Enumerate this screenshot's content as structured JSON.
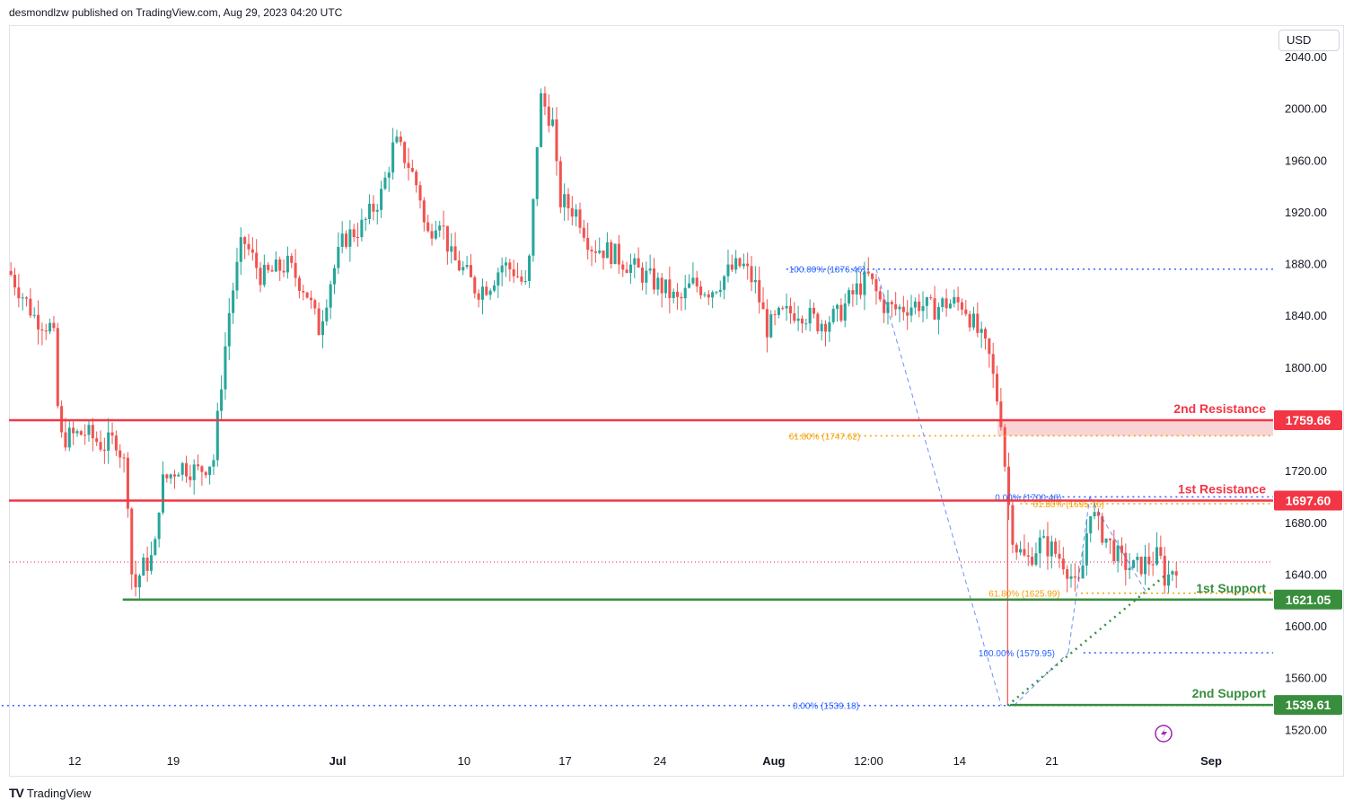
{
  "header": {
    "text": "desmondlzw published on TradingView.com, Aug 29, 2023 04:20 UTC"
  },
  "currency": "USD",
  "footer": {
    "logo_icon": "TV",
    "logo_text": "TradingView"
  },
  "colors": {
    "up": "#26a69a",
    "down": "#ef5350",
    "resistance": "#f23645",
    "support": "#388e3c",
    "fib_blue": "#2962ff",
    "fib_orange": "#f59d00",
    "zone": "#f7c6c8",
    "last_price": "#e91e63",
    "lightning": "#9c27b0"
  },
  "chart_data": {
    "type": "candlestick",
    "ylim": [
      1505,
      2065
    ],
    "y_ticks": [
      2040,
      2000,
      1960,
      1920,
      1880,
      1840,
      1800,
      1720,
      1680,
      1640,
      1600,
      1560,
      1520
    ],
    "y_tick_labels": [
      "2040.00",
      "2000.00",
      "1960.00",
      "1920.00",
      "1880.00",
      "1840.00",
      "1800.00",
      "1720.00",
      "1680.00",
      "1640.00",
      "1600.00",
      "1560.00",
      "1520.00"
    ],
    "x_ticks": [
      {
        "label": "12",
        "t": 0.052
      },
      {
        "label": "19",
        "t": 0.13
      },
      {
        "label": "Jul",
        "t": 0.26,
        "bold": true
      },
      {
        "label": "10",
        "t": 0.36
      },
      {
        "label": "17",
        "t": 0.44
      },
      {
        "label": "24",
        "t": 0.515
      },
      {
        "label": "Aug",
        "t": 0.605,
        "bold": true
      },
      {
        "label": "12:00",
        "t": 0.68
      },
      {
        "label": "14",
        "t": 0.752
      },
      {
        "label": "21",
        "t": 0.825
      },
      {
        "label": "Sep",
        "t": 0.951,
        "bold": true
      }
    ],
    "price_path": [
      [
        0.0,
        1875
      ],
      [
        0.02,
        1840
      ],
      [
        0.035,
        1830
      ],
      [
        0.04,
        1745
      ],
      [
        0.06,
        1750
      ],
      [
        0.075,
        1740
      ],
      [
        0.085,
        1745
      ],
      [
        0.093,
        1720
      ],
      [
        0.098,
        1625
      ],
      [
        0.105,
        1645
      ],
      [
        0.115,
        1655
      ],
      [
        0.12,
        1710
      ],
      [
        0.135,
        1725
      ],
      [
        0.15,
        1720
      ],
      [
        0.162,
        1730
      ],
      [
        0.168,
        1790
      ],
      [
        0.175,
        1850
      ],
      [
        0.185,
        1900
      ],
      [
        0.2,
        1870
      ],
      [
        0.22,
        1880
      ],
      [
        0.235,
        1860
      ],
      [
        0.245,
        1830
      ],
      [
        0.255,
        1870
      ],
      [
        0.265,
        1900
      ],
      [
        0.28,
        1910
      ],
      [
        0.295,
        1935
      ],
      [
        0.305,
        1975
      ],
      [
        0.315,
        1960
      ],
      [
        0.325,
        1935
      ],
      [
        0.33,
        1900
      ],
      [
        0.34,
        1920
      ],
      [
        0.35,
        1885
      ],
      [
        0.36,
        1875
      ],
      [
        0.37,
        1860
      ],
      [
        0.38,
        1865
      ],
      [
        0.39,
        1880
      ],
      [
        0.4,
        1875
      ],
      [
        0.41,
        1860
      ],
      [
        0.415,
        1930
      ],
      [
        0.42,
        2010
      ],
      [
        0.43,
        1990
      ],
      [
        0.435,
        1930
      ],
      [
        0.45,
        1920
      ],
      [
        0.46,
        1895
      ],
      [
        0.475,
        1890
      ],
      [
        0.49,
        1880
      ],
      [
        0.505,
        1870
      ],
      [
        0.52,
        1860
      ],
      [
        0.53,
        1850
      ],
      [
        0.54,
        1865
      ],
      [
        0.555,
        1860
      ],
      [
        0.57,
        1875
      ],
      [
        0.58,
        1880
      ],
      [
        0.59,
        1865
      ],
      [
        0.6,
        1830
      ],
      [
        0.61,
        1840
      ],
      [
        0.625,
        1845
      ],
      [
        0.64,
        1835
      ],
      [
        0.655,
        1840
      ],
      [
        0.67,
        1860
      ],
      [
        0.68,
        1870
      ],
      [
        0.69,
        1850
      ],
      [
        0.7,
        1845
      ],
      [
        0.72,
        1850
      ],
      [
        0.73,
        1845
      ],
      [
        0.74,
        1850
      ],
      [
        0.755,
        1850
      ],
      [
        0.765,
        1830
      ],
      [
        0.775,
        1810
      ],
      [
        0.785,
        1760
      ],
      [
        0.79,
        1700
      ],
      [
        0.795,
        1665
      ],
      [
        0.805,
        1650
      ],
      [
        0.815,
        1665
      ],
      [
        0.825,
        1660
      ],
      [
        0.835,
        1650
      ],
      [
        0.84,
        1640
      ],
      [
        0.845,
        1625
      ],
      [
        0.85,
        1650
      ],
      [
        0.855,
        1695
      ],
      [
        0.86,
        1680
      ],
      [
        0.87,
        1665
      ],
      [
        0.88,
        1650
      ],
      [
        0.89,
        1645
      ],
      [
        0.9,
        1650
      ],
      [
        0.91,
        1655
      ],
      [
        0.915,
        1635
      ],
      [
        0.92,
        1645
      ],
      [
        0.925,
        1650
      ]
    ],
    "levels": [
      {
        "name": "2nd Resistance",
        "value": 1759.66,
        "value_label": "1759.66",
        "kind": "resistance"
      },
      {
        "name": "1st Resistance",
        "value": 1697.6,
        "value_label": "1697.60",
        "kind": "resistance"
      },
      {
        "name": "1st Support",
        "value": 1621.05,
        "value_label": "1621.05",
        "kind": "support"
      },
      {
        "name": "2nd Support",
        "value": 1539.61,
        "value_label": "1539.61",
        "kind": "support"
      }
    ],
    "fib_labels": [
      {
        "text": "100.00% (1876.46)",
        "value": 1876.46,
        "color": "blue"
      },
      {
        "text": "61.80% (1747.62)",
        "value": 1747.62,
        "color": "orange"
      },
      {
        "text": "0.00% (1700.46)",
        "value": 1700.46,
        "color": "blue"
      },
      {
        "text": "61.80% (1695.16)",
        "value": 1695.16,
        "color": "orange"
      },
      {
        "text": "61.80% (1625.99)",
        "value": 1625.99,
        "color": "orange"
      },
      {
        "text": "100.00% (1579.95)",
        "value": 1579.95,
        "color": "blue"
      },
      {
        "text": "0.00% (1539.18)",
        "value": 1539.18,
        "color": "blue"
      }
    ],
    "last_price": 1650
  }
}
